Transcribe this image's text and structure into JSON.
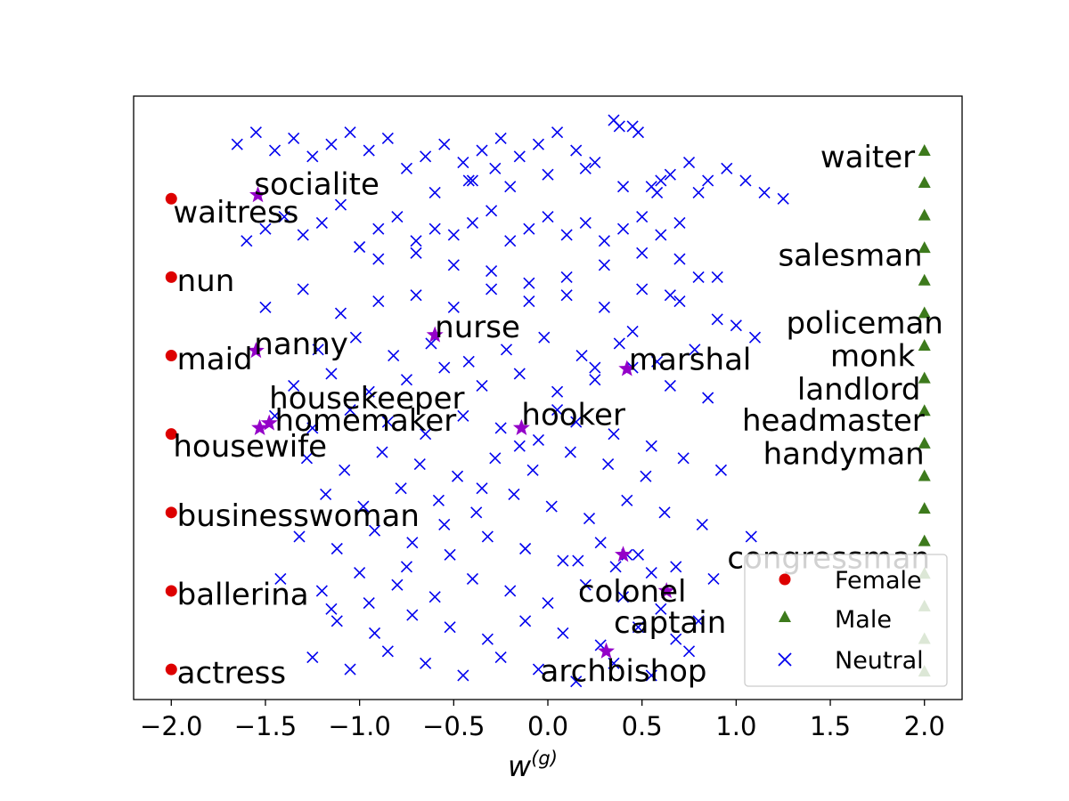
{
  "chart_data": {
    "type": "scatter",
    "xlabel_base": "w",
    "xlabel_sup": "(g)",
    "xlim": [
      -2.2,
      2.2
    ],
    "ylim": [
      0,
      1
    ],
    "x_ticks": [
      {
        "value": -2.0,
        "label": "−2.0"
      },
      {
        "value": -1.5,
        "label": "−1.5"
      },
      {
        "value": -1.0,
        "label": "−1.0"
      },
      {
        "value": -0.5,
        "label": "−0.5"
      },
      {
        "value": 0.0,
        "label": "0.0"
      },
      {
        "value": 0.5,
        "label": "0.5"
      },
      {
        "value": 1.0,
        "label": "1.0"
      },
      {
        "value": 1.5,
        "label": "1.5"
      },
      {
        "value": 2.0,
        "label": "2.0"
      }
    ],
    "colors": {
      "female": "#dd0000",
      "male": "#3d7a1c",
      "neutral": "#0000ee",
      "highlight": "#9400c8"
    },
    "legend": {
      "position": "lower right",
      "entries": [
        {
          "label": "Female",
          "marker": "circle",
          "color": "#dd0000"
        },
        {
          "label": "Male",
          "marker": "triangle",
          "color": "#3d7a1c"
        },
        {
          "label": "Neutral",
          "marker": "x",
          "color": "#0000ee"
        }
      ]
    },
    "female": {
      "x": [
        -2.0,
        -2.0,
        -2.0,
        -2.0,
        -2.0,
        -2.0,
        -2.0
      ],
      "y": [
        0.83,
        0.7,
        0.57,
        0.44,
        0.31,
        0.18,
        0.05
      ]
    },
    "male": {
      "x": [
        2.0,
        2.0,
        2.0,
        2.0,
        2.0,
        2.0,
        2.0,
        2.0,
        2.0,
        2.0,
        2.0,
        2.0,
        2.0,
        2.0,
        2.0,
        2.0,
        2.0
      ],
      "y": [
        0.91,
        0.857,
        0.803,
        0.749,
        0.695,
        0.641,
        0.587,
        0.533,
        0.479,
        0.425,
        0.371,
        0.317,
        0.263,
        0.209,
        0.155,
        0.101,
        0.047
      ]
    },
    "highlighted": {
      "x": [
        -1.54,
        -1.55,
        -0.6,
        0.42,
        -1.48,
        -1.53,
        -0.14,
        0.4,
        0.63,
        0.31
      ],
      "y": [
        0.836,
        0.578,
        0.604,
        0.548,
        0.458,
        0.45,
        0.45,
        0.24,
        0.18,
        0.08
      ]
    },
    "word_labels": [
      {
        "text": "socialite",
        "x": -1.56,
        "y": 0.855,
        "anchor": "start"
      },
      {
        "text": "waitress",
        "x": -1.99,
        "y": 0.808,
        "anchor": "start"
      },
      {
        "text": "nun",
        "x": -1.97,
        "y": 0.695,
        "anchor": "start"
      },
      {
        "text": "nanny",
        "x": -1.56,
        "y": 0.59,
        "anchor": "start"
      },
      {
        "text": "maid",
        "x": -1.97,
        "y": 0.565,
        "anchor": "start"
      },
      {
        "text": "nurse",
        "x": -0.6,
        "y": 0.618,
        "anchor": "start"
      },
      {
        "text": "marshal",
        "x": 0.43,
        "y": 0.564,
        "anchor": "start"
      },
      {
        "text": "housekeeper",
        "x": -1.48,
        "y": 0.5,
        "anchor": "start"
      },
      {
        "text": "homemaker",
        "x": -1.45,
        "y": 0.463,
        "anchor": "start"
      },
      {
        "text": "hooker",
        "x": -0.14,
        "y": 0.473,
        "anchor": "start"
      },
      {
        "text": "housewife",
        "x": -1.99,
        "y": 0.42,
        "anchor": "start"
      },
      {
        "text": "businesswoman",
        "x": -1.97,
        "y": 0.305,
        "anchor": "start"
      },
      {
        "text": "ballerina",
        "x": -1.97,
        "y": 0.175,
        "anchor": "start"
      },
      {
        "text": "actress",
        "x": -1.97,
        "y": 0.045,
        "anchor": "start"
      },
      {
        "text": "waiter",
        "x": 1.95,
        "y": 0.9,
        "anchor": "end"
      },
      {
        "text": "salesman",
        "x": 1.99,
        "y": 0.737,
        "anchor": "end"
      },
      {
        "text": "policeman",
        "x": 2.1,
        "y": 0.625,
        "anchor": "end"
      },
      {
        "text": "monk",
        "x": 1.95,
        "y": 0.57,
        "anchor": "end"
      },
      {
        "text": "landlord",
        "x": 1.98,
        "y": 0.515,
        "anchor": "end"
      },
      {
        "text": "headmaster",
        "x": 2.0,
        "y": 0.463,
        "anchor": "end"
      },
      {
        "text": "handyman",
        "x": 2.0,
        "y": 0.408,
        "anchor": "end"
      },
      {
        "text": "congressman",
        "x": 2.03,
        "y": 0.235,
        "anchor": "end"
      },
      {
        "text": "colonel",
        "x": 0.16,
        "y": 0.18,
        "anchor": "start"
      },
      {
        "text": "captain",
        "x": 0.35,
        "y": 0.128,
        "anchor": "start"
      },
      {
        "text": "archbishop",
        "x": -0.04,
        "y": 0.048,
        "anchor": "start"
      }
    ],
    "neutral": {
      "x": [
        -1.65,
        -1.55,
        -1.45,
        -1.35,
        -1.25,
        -1.15,
        -1.05,
        -0.95,
        -0.85,
        -0.75,
        -0.65,
        -0.55,
        -0.45,
        -0.35,
        -0.25,
        -0.15,
        -0.05,
        0.05,
        0.15,
        0.25,
        0.35,
        0.45,
        0.55,
        0.65,
        0.75,
        0.85,
        0.95,
        1.05,
        1.15,
        1.25,
        -1.6,
        -1.5,
        -1.4,
        -1.3,
        -1.2,
        -1.1,
        -1.0,
        -0.9,
        -0.8,
        -0.7,
        -0.6,
        -0.5,
        -0.4,
        -0.3,
        -0.2,
        -0.1,
        0.0,
        0.1,
        0.2,
        0.3,
        0.4,
        0.5,
        0.6,
        0.7,
        0.8,
        0.9,
        1.0,
        1.1,
        -1.5,
        -1.3,
        -1.1,
        -0.9,
        -0.7,
        -0.5,
        -0.3,
        -0.1,
        0.1,
        0.3,
        0.5,
        0.7,
        0.9,
        -1.22,
        -1.02,
        -0.82,
        -0.62,
        -0.42,
        -0.22,
        -0.02,
        0.18,
        0.38,
        0.58,
        0.78,
        -1.35,
        -1.15,
        -0.95,
        -0.75,
        -0.55,
        -0.35,
        -0.15,
        0.05,
        0.25,
        0.45,
        0.65,
        0.85,
        -1.45,
        -1.25,
        -1.05,
        -0.85,
        -0.65,
        -0.45,
        -0.25,
        -0.05,
        0.15,
        0.35,
        0.55,
        -1.28,
        -1.08,
        -0.88,
        -0.68,
        -0.48,
        -0.28,
        -0.08,
        0.12,
        0.32,
        0.52,
        0.72,
        0.92,
        -1.18,
        -0.98,
        -0.78,
        -0.58,
        -0.38,
        -0.18,
        0.02,
        0.22,
        0.42,
        0.62,
        0.82,
        -1.32,
        -1.12,
        -0.92,
        -0.72,
        -0.52,
        -0.32,
        -0.12,
        0.08,
        0.28,
        0.48,
        0.68,
        0.88,
        1.08,
        -1.42,
        -1.2,
        -1.0,
        -0.8,
        -0.6,
        -0.4,
        -0.2,
        0.0,
        0.2,
        0.4,
        0.6,
        0.8,
        -1.12,
        -0.92,
        -0.72,
        -0.52,
        -0.32,
        -0.12,
        0.08,
        0.28,
        0.48,
        0.68,
        -1.25,
        -1.05,
        -0.85,
        -0.65,
        -0.45,
        -0.25,
        -0.05,
        0.15,
        0.35,
        0.55,
        0.75,
        -1.15,
        -0.95,
        -0.75,
        -0.55,
        -0.35,
        -0.15,
        0.05,
        0.25,
        0.45,
        0.65,
        -0.9,
        -0.7,
        -0.5,
        -0.3,
        -0.1,
        0.1,
        0.3,
        0.5,
        0.7,
        -0.6,
        -0.4,
        -0.2,
        0.0,
        0.2,
        0.4,
        0.6,
        0.8,
        0.38,
        0.48,
        0.58,
        -0.42,
        -0.28,
        0.16,
        0.36,
        0.42,
        0.55
      ],
      "y": [
        0.92,
        0.94,
        0.91,
        0.93,
        0.9,
        0.92,
        0.94,
        0.91,
        0.93,
        0.88,
        0.9,
        0.92,
        0.89,
        0.91,
        0.93,
        0.9,
        0.92,
        0.94,
        0.91,
        0.89,
        0.96,
        0.95,
        0.85,
        0.87,
        0.89,
        0.86,
        0.88,
        0.86,
        0.84,
        0.83,
        0.76,
        0.78,
        0.8,
        0.77,
        0.79,
        0.82,
        0.75,
        0.78,
        0.8,
        0.76,
        0.78,
        0.77,
        0.79,
        0.81,
        0.76,
        0.78,
        0.8,
        0.77,
        0.79,
        0.76,
        0.78,
        0.8,
        0.77,
        0.79,
        0.7,
        0.7,
        0.62,
        0.6,
        0.65,
        0.68,
        0.64,
        0.66,
        0.67,
        0.65,
        0.68,
        0.66,
        0.67,
        0.65,
        0.68,
        0.66,
        0.63,
        0.58,
        0.6,
        0.57,
        0.59,
        0.56,
        0.58,
        0.6,
        0.57,
        0.59,
        0.56,
        0.58,
        0.52,
        0.54,
        0.51,
        0.53,
        0.55,
        0.52,
        0.54,
        0.51,
        0.53,
        0.55,
        0.52,
        0.5,
        0.47,
        0.45,
        0.48,
        0.46,
        0.44,
        0.47,
        0.45,
        0.43,
        0.46,
        0.44,
        0.42,
        0.4,
        0.38,
        0.41,
        0.39,
        0.37,
        0.4,
        0.38,
        0.41,
        0.39,
        0.37,
        0.4,
        0.38,
        0.34,
        0.32,
        0.35,
        0.33,
        0.31,
        0.34,
        0.32,
        0.3,
        0.33,
        0.31,
        0.29,
        0.27,
        0.25,
        0.28,
        0.26,
        0.24,
        0.27,
        0.25,
        0.23,
        0.26,
        0.24,
        0.22,
        0.2,
        0.27,
        0.2,
        0.18,
        0.21,
        0.19,
        0.17,
        0.2,
        0.18,
        0.16,
        0.19,
        0.17,
        0.15,
        0.13,
        0.13,
        0.11,
        0.14,
        0.12,
        0.1,
        0.13,
        0.11,
        0.09,
        0.12,
        0.1,
        0.07,
        0.05,
        0.08,
        0.06,
        0.04,
        0.07,
        0.05,
        0.03,
        0.06,
        0.04,
        0.08,
        0.15,
        0.16,
        0.22,
        0.29,
        0.35,
        0.42,
        0.48,
        0.55,
        0.61,
        0.67,
        0.73,
        0.74,
        0.72,
        0.71,
        0.69,
        0.7,
        0.72,
        0.74,
        0.73,
        0.84,
        0.86,
        0.85,
        0.87,
        0.88,
        0.85,
        0.86,
        0.84,
        0.95,
        0.94,
        0.84,
        0.86,
        0.88,
        0.23,
        0.22,
        0.24,
        0.21
      ]
    }
  }
}
